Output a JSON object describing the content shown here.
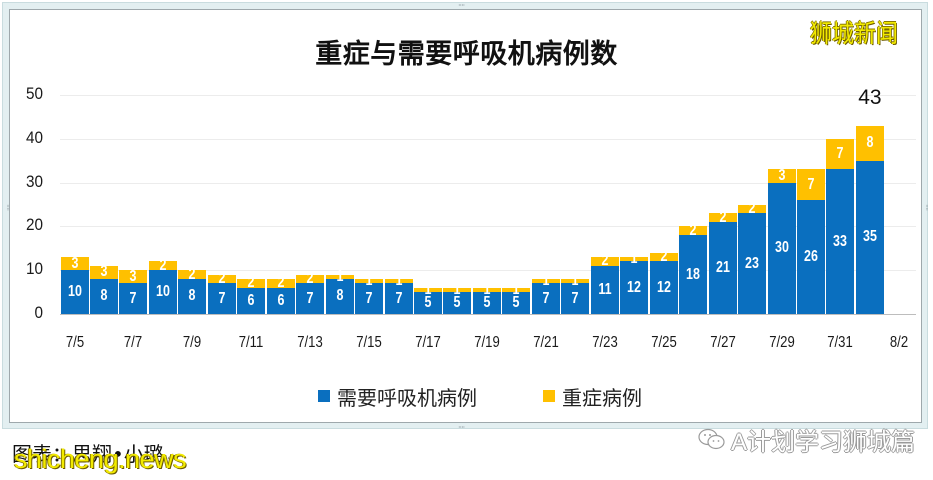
{
  "window": {
    "watermark_top": "狮城新闻",
    "caption": "图表：思翔•小璐",
    "caption_return_mark": "↵",
    "watermark_bottom": "shicheng.news",
    "wechat_account": "A计划学习狮城篇",
    "handle_glyph": "····"
  },
  "colors": {
    "ventilator": "#0a6fbf",
    "severe": "#ffc000",
    "frame_band": "#e3eff1",
    "frame_border": "#9ea8ac"
  },
  "chart_data": {
    "type": "bar",
    "stacked": true,
    "title": "重症与需要呼吸机病例数",
    "xlabel": "",
    "ylabel": "",
    "ylim": [
      0,
      50
    ],
    "yticks": [
      0,
      10,
      20,
      30,
      40,
      50
    ],
    "grid": true,
    "legend_position": "bottom",
    "categories": [
      "7/5",
      "7/6",
      "7/7",
      "7/8",
      "7/9",
      "7/10",
      "7/11",
      "7/12",
      "7/13",
      "7/14",
      "7/15",
      "7/16",
      "7/17",
      "7/18",
      "7/19",
      "7/20",
      "7/21",
      "7/22",
      "7/23",
      "7/24",
      "7/25",
      "7/26",
      "7/27",
      "7/28",
      "7/29",
      "7/30",
      "7/31",
      "8/1"
    ],
    "x_slots": 29,
    "x_tick_labels": [
      "7/5",
      "7/7",
      "7/9",
      "7/11",
      "7/13",
      "7/15",
      "7/17",
      "7/19",
      "7/21",
      "7/23",
      "7/25",
      "7/27",
      "7/29",
      "7/31",
      "8/2"
    ],
    "x_tick_every": 2,
    "series": [
      {
        "name": "需要呼吸机病例",
        "color": "#0a6fbf",
        "values": [
          10,
          8,
          7,
          10,
          8,
          7,
          6,
          6,
          7,
          8,
          7,
          7,
          5,
          5,
          5,
          5,
          7,
          7,
          11,
          12,
          12,
          18,
          21,
          23,
          30,
          26,
          33,
          35
        ]
      },
      {
        "name": "重症病例",
        "color": "#ffc000",
        "values": [
          3,
          3,
          3,
          2,
          2,
          2,
          2,
          2,
          2,
          1,
          1,
          1,
          1,
          1,
          1,
          1,
          1,
          1,
          2,
          1,
          2,
          2,
          2,
          2,
          3,
          7,
          7,
          8
        ]
      }
    ],
    "annotations": [
      {
        "text": "43",
        "index": 27,
        "value": 43
      }
    ]
  }
}
